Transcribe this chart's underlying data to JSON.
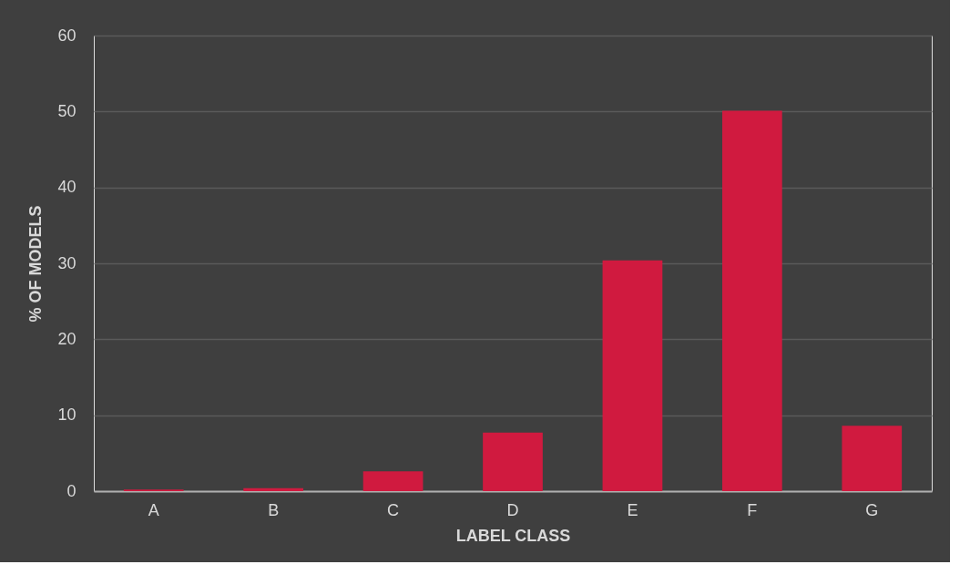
{
  "chart_data": {
    "type": "bar",
    "xlabel": "LABEL CLASS",
    "ylabel": "% OF MODELS",
    "categories": [
      "A",
      "B",
      "C",
      "D",
      "E",
      "F",
      "G"
    ],
    "series": [
      {
        "color": "#d01a3f",
        "values": [
          0.2,
          0.4,
          2.6,
          7.7,
          30.4,
          50.1,
          8.6
        ]
      }
    ],
    "ylim": [
      0,
      60
    ],
    "yticks": [
      0,
      10,
      20,
      30,
      40,
      50,
      60
    ],
    "grid": "y",
    "legend": false
  }
}
